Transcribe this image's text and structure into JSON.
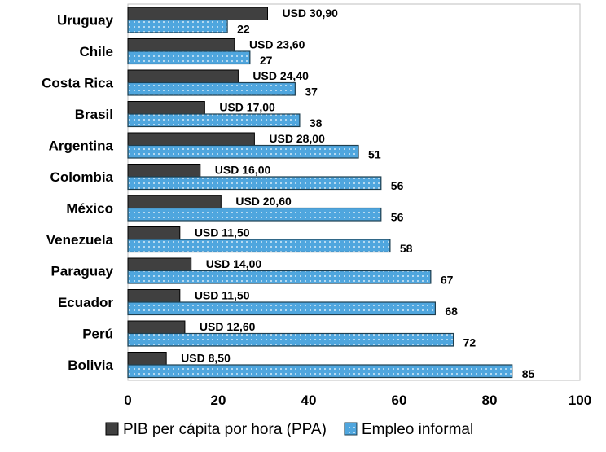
{
  "chart_data": {
    "type": "bar",
    "orientation": "horizontal",
    "categories": [
      "Uruguay",
      "Chile",
      "Costa Rica",
      "Brasil",
      "Argentina",
      "Colombia",
      "México",
      "Venezuela",
      "Paraguay",
      "Ecuador",
      "Perú",
      "Bolivia"
    ],
    "series": [
      {
        "name": "PIB per cápita por hora (PPA)",
        "values": [
          30.9,
          23.6,
          24.4,
          17.0,
          28.0,
          16.0,
          20.6,
          11.5,
          14.0,
          11.5,
          12.6,
          8.5
        ],
        "labels": [
          "USD 30,90",
          "USD 23,60",
          "USD 24,40",
          "USD 17,00",
          "USD 28,00",
          "USD 16,00",
          "USD 20,60",
          "USD 11,50",
          "USD 14,00",
          "USD 11,50",
          "USD 12,60",
          "USD 8,50"
        ],
        "color": "#404040"
      },
      {
        "name": "Empleo informal",
        "values": [
          22,
          27,
          37,
          38,
          51,
          56,
          56,
          58,
          67,
          68,
          72,
          85
        ],
        "labels": [
          "22",
          "27",
          "37",
          "38",
          "51",
          "56",
          "56",
          "58",
          "67",
          "68",
          "72",
          "85"
        ],
        "color": "#4fa6de"
      }
    ],
    "xlim": [
      0,
      100
    ],
    "xticks": [
      "0",
      "20",
      "40",
      "60",
      "80",
      "100"
    ],
    "legend_position": "bottom",
    "grid": false
  }
}
